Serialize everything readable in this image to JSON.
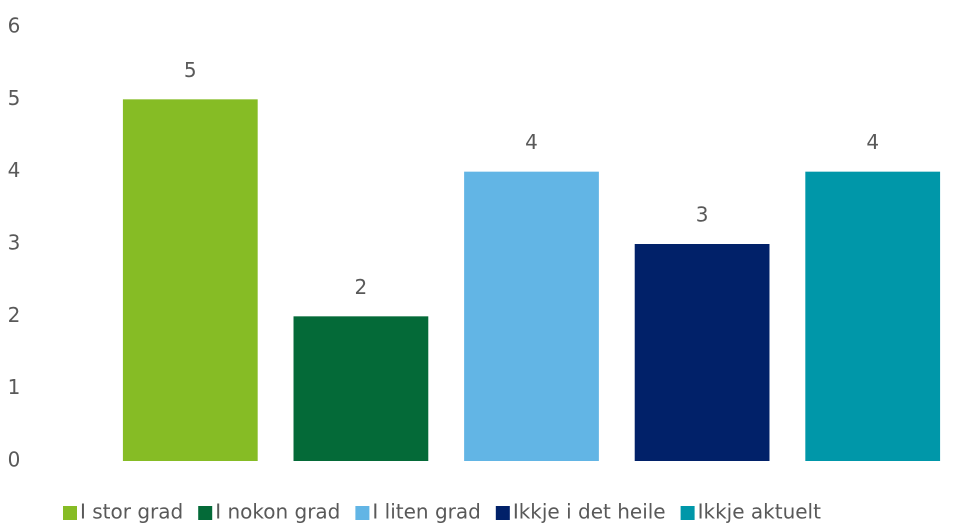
{
  "chart_data": {
    "type": "bar",
    "categories": [
      null
    ],
    "series": [
      {
        "name": "I stor grad",
        "color": "#86bc25",
        "values": [
          5
        ]
      },
      {
        "name": "I nokon grad",
        "color": "#046a38",
        "values": [
          2
        ]
      },
      {
        "name": "I liten grad",
        "color": "#62b5e5",
        "values": [
          4
        ]
      },
      {
        "name": "Ikkje i det heile",
        "color": "#012169",
        "values": [
          3
        ]
      },
      {
        "name": "Ikkje aktuelt",
        "color": "#0097a9",
        "values": [
          4
        ]
      }
    ],
    "ylim": [
      0,
      6
    ],
    "yticks": [
      0,
      1,
      2,
      3,
      4,
      5,
      6
    ],
    "legend": "bottom"
  }
}
